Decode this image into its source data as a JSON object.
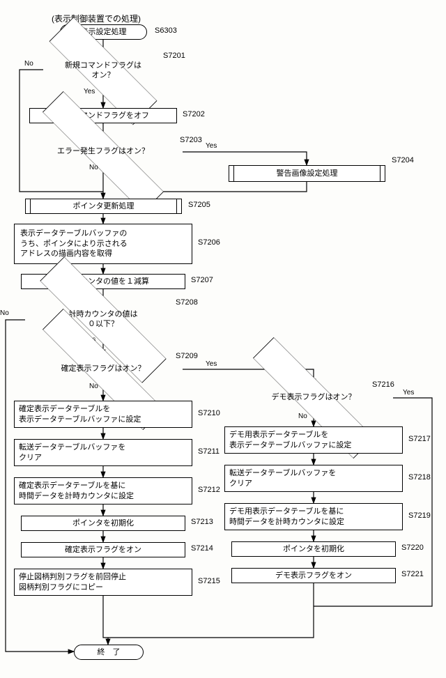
{
  "title": "(表示制御装置での処理)",
  "start": "表示設定処理",
  "end": "終　了",
  "steps": {
    "s6303": "S6303",
    "s7201": "S7201",
    "d7201": "新規コマンドフラグは\nオン？",
    "s7202": "S7202",
    "p7202": "新規コマンドフラグをオフ",
    "s7203": "S7203",
    "d7203": "エラー発生フラグはオン？",
    "s7204": "S7204",
    "p7204": "警告画像設定処理",
    "s7205": "S7205",
    "p7205": "ポインタ更新処理",
    "s7206": "S7206",
    "p7206": "表示データテーブルバッファの\nうち、ポインタにより示される\nアドレスの描画内容を取得",
    "s7207": "S7207",
    "p7207": "計時カウンタの値を１減算",
    "s7208": "S7208",
    "d7208": "計時カウンタの値は\n０以下？",
    "s7209": "S7209",
    "d7209": "確定表示フラグはオン？",
    "s7210": "S7210",
    "p7210": "確定表示データテーブルを\n表示データテーブルバッファに設定",
    "s7211": "S7211",
    "p7211": "転送データテーブルバッファを\nクリア",
    "s7212": "S7212",
    "p7212": "確定表示データテーブルを基に\n時間データを計時カウンタに設定",
    "s7213": "S7213",
    "p7213": "ポインタを初期化",
    "s7214": "S7214",
    "p7214": "確定表示フラグをオン",
    "s7215": "S7215",
    "p7215": "停止図柄判別フラグを前回停止\n図柄判別フラグにコピー",
    "s7216": "S7216",
    "d7216": "デモ表示フラグはオン？",
    "s7217": "S7217",
    "p7217": "デモ用表示データテーブルを\n表示データテーブルバッファに設定",
    "s7218": "S7218",
    "p7218": "転送データテーブルバッファを\nクリア",
    "s7219": "S7219",
    "p7219": "デモ用表示データテーブルを基に\n時間データを計時カウンタに設定",
    "s7220": "S7220",
    "p7220": "ポインタを初期化",
    "s7221": "S7221",
    "p7221": "デモ表示フラグをオン"
  },
  "labels": {
    "yes": "Yes",
    "no": "No"
  },
  "colors": {
    "line": "#000000",
    "bg": "#fdfdfb"
  }
}
